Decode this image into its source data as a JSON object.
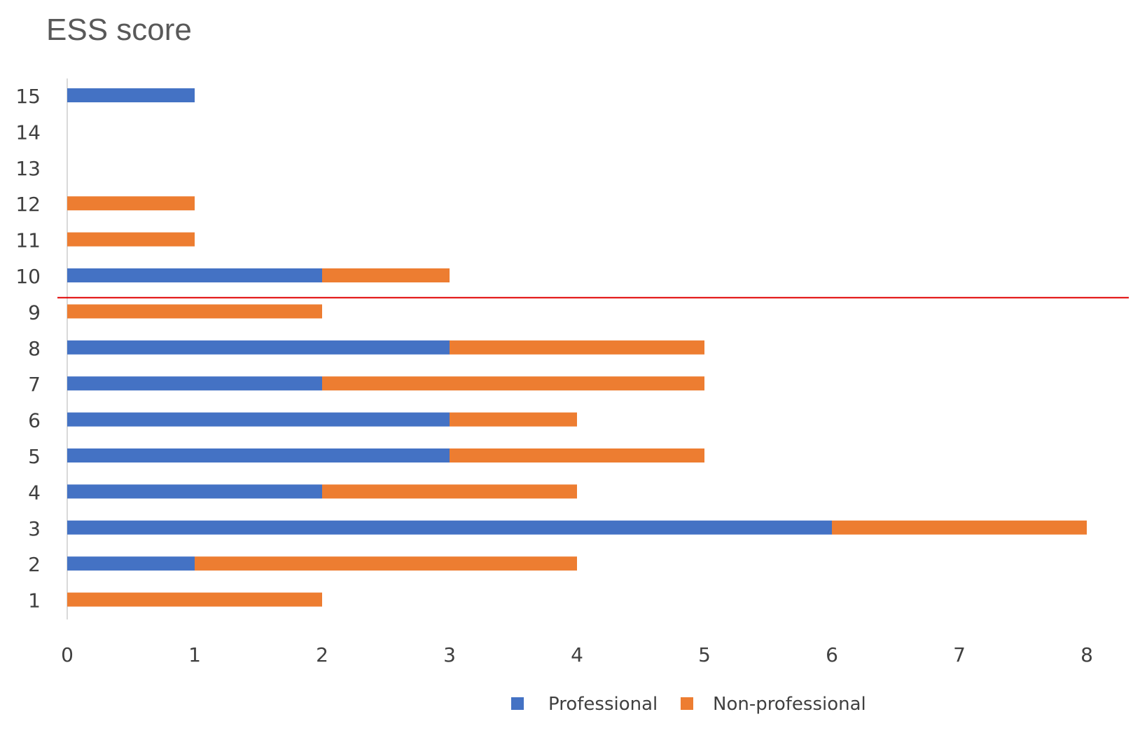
{
  "chart_data": {
    "type": "bar",
    "orientation": "horizontal",
    "stacked": true,
    "title": "ESS score",
    "xlabel": "",
    "ylabel": "",
    "categories": [
      "1",
      "2",
      "3",
      "4",
      "5",
      "6",
      "7",
      "8",
      "9",
      "10",
      "11",
      "12",
      "13",
      "14",
      "15"
    ],
    "series": [
      {
        "name": "Professional",
        "color": "#4472C4",
        "values": [
          0,
          1,
          6,
          2,
          3,
          3,
          2,
          3,
          0,
          2,
          0,
          0,
          0,
          0,
          1
        ]
      },
      {
        "name": "Non-professional",
        "color": "#ED7D31",
        "values": [
          2,
          3,
          2,
          2,
          2,
          1,
          3,
          2,
          2,
          1,
          1,
          1,
          0,
          0,
          0
        ]
      }
    ],
    "xlim": [
      0,
      8
    ],
    "x_ticks": [
      "0",
      "1",
      "2",
      "3",
      "4",
      "5",
      "6",
      "7",
      "8"
    ],
    "grid": false,
    "legend_position": "bottom",
    "reference_line": {
      "between_categories": [
        "9",
        "10"
      ],
      "color": "#E00000"
    }
  }
}
